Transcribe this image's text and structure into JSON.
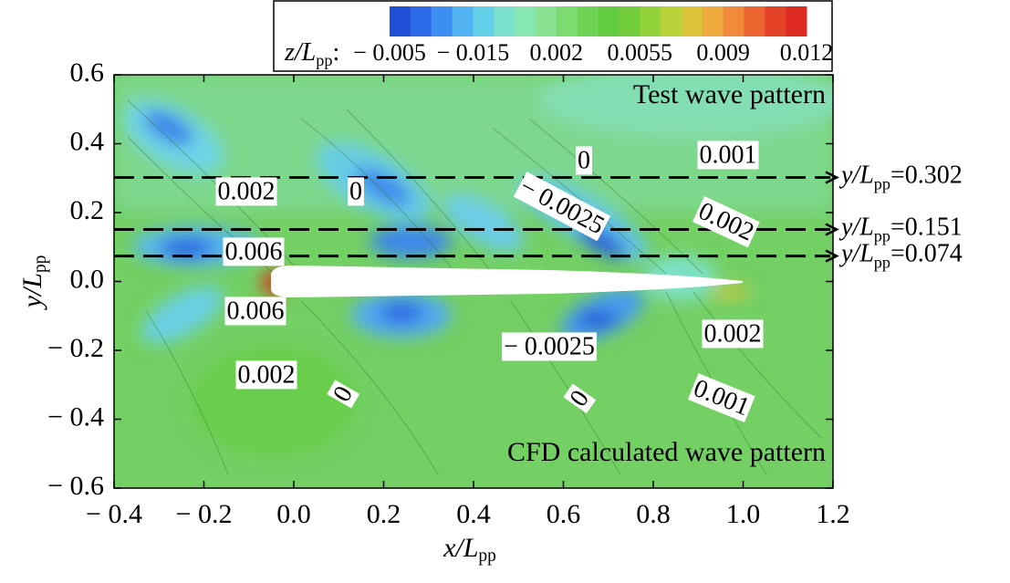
{
  "chart_data": {
    "type": "contour",
    "x_label": {
      "text": "x/L",
      "sub": "pp"
    },
    "y_label": {
      "text": "y/L",
      "sub": "pp"
    },
    "xlim": [
      -0.4,
      1.2
    ],
    "ylim": [
      -0.6,
      0.6
    ],
    "xticks": [
      {
        "value": -0.4,
        "label": "− 0.4"
      },
      {
        "value": -0.2,
        "label": "− 0.2"
      },
      {
        "value": 0,
        "label": "0.0"
      },
      0.2,
      0.4,
      0.6,
      0.8,
      {
        "value": 1,
        "label": "1.0"
      },
      1.2
    ],
    "yticks": [
      0.6,
      0.4,
      0.2,
      {
        "value": 0,
        "label": "0.0"
      },
      {
        "value": -0.2,
        "label": "− 0.2"
      },
      {
        "value": -0.4,
        "label": "− 0.4"
      },
      {
        "value": -0.6,
        "label": "− 0.6"
      }
    ],
    "colorbar": {
      "name": {
        "text": "z/L",
        "sub": "pp",
        "suffix": ":"
      },
      "ticks": [
        {
          "value": -0.005,
          "label": "− 0.005"
        },
        {
          "value": -0.015,
          "label": "− 0.015"
        },
        0.002,
        0.0055,
        0.009,
        0.012
      ],
      "colors": [
        "#1f4fd8",
        "#2a6ae8",
        "#3d8ef2",
        "#52b2f2",
        "#63cfe8",
        "#78e0cc",
        "#86e6b0",
        "#88e292",
        "#7ddc70",
        "#6fd456",
        "#62cc40",
        "#70cc3a",
        "#92d23a",
        "#b8d23a",
        "#dcc43a",
        "#eeaa3e",
        "#f08a3a",
        "#ec6430",
        "#e44226",
        "#de2a20"
      ]
    },
    "reference_lines": [
      {
        "value": 0.302,
        "name": {
          "text": "y/L",
          "sub": "pp"
        },
        "label": "=0.302"
      },
      {
        "value": 0.151,
        "name": {
          "text": "y/L",
          "sub": "pp"
        },
        "label": "=0.151"
      },
      {
        "value": 0.074,
        "name": {
          "text": "y/L",
          "sub": "pp"
        },
        "label": "=0.074"
      }
    ],
    "annotations": [
      "Test wave pattern",
      "CFD calculated wave pattern"
    ],
    "contour_labels": [
      "0",
      "0.001",
      "0.002",
      "0",
      "− 0.0025",
      "0.002",
      "0.006",
      "0.006",
      "− 0.0025",
      "0.002",
      "0.002",
      "0",
      "0",
      "0.001"
    ]
  }
}
